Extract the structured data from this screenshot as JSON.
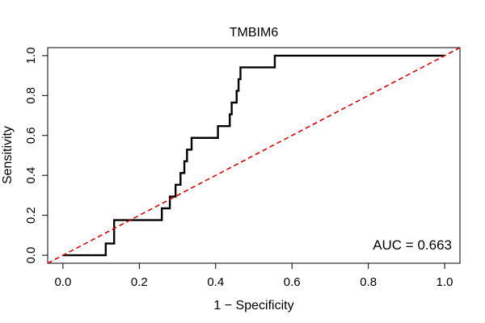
{
  "chart_data": {
    "type": "line",
    "title": "TMBIM6",
    "xlabel": "1 − Specificity",
    "ylabel": "Sensitivity",
    "xlim": [
      -0.04,
      1.04
    ],
    "ylim": [
      -0.04,
      1.04
    ],
    "xticks": [
      0.0,
      0.2,
      0.4,
      0.6,
      0.8,
      1.0
    ],
    "xtick_labels": [
      "0.0",
      "0.2",
      "0.4",
      "0.6",
      "0.8",
      "1.0"
    ],
    "yticks": [
      0.0,
      0.2,
      0.4,
      0.6,
      0.8,
      1.0
    ],
    "ytick_labels": [
      "0.0",
      "0.2",
      "0.4",
      "0.6",
      "0.8",
      "1.0"
    ],
    "grid": false,
    "annotation": "AUC = 0.663",
    "series": [
      {
        "type": "step",
        "color": "#000000",
        "points": [
          [
            0.0,
            0.0
          ],
          [
            0.112,
            0.0
          ],
          [
            0.112,
            0.059
          ],
          [
            0.134,
            0.059
          ],
          [
            0.134,
            0.176
          ],
          [
            0.259,
            0.176
          ],
          [
            0.259,
            0.235
          ],
          [
            0.28,
            0.235
          ],
          [
            0.28,
            0.294
          ],
          [
            0.295,
            0.294
          ],
          [
            0.295,
            0.353
          ],
          [
            0.308,
            0.353
          ],
          [
            0.308,
            0.412
          ],
          [
            0.318,
            0.412
          ],
          [
            0.318,
            0.471
          ],
          [
            0.325,
            0.471
          ],
          [
            0.325,
            0.529
          ],
          [
            0.337,
            0.529
          ],
          [
            0.337,
            0.588
          ],
          [
            0.406,
            0.588
          ],
          [
            0.406,
            0.647
          ],
          [
            0.437,
            0.647
          ],
          [
            0.437,
            0.706
          ],
          [
            0.442,
            0.706
          ],
          [
            0.442,
            0.765
          ],
          [
            0.455,
            0.765
          ],
          [
            0.455,
            0.824
          ],
          [
            0.46,
            0.824
          ],
          [
            0.46,
            0.882
          ],
          [
            0.465,
            0.882
          ],
          [
            0.465,
            0.941
          ],
          [
            0.555,
            0.941
          ],
          [
            0.555,
            1.0
          ],
          [
            1.0,
            1.0
          ]
        ]
      },
      {
        "type": "reference",
        "color": "#e00000",
        "dashed": true,
        "points": [
          [
            -0.04,
            -0.04
          ],
          [
            1.04,
            1.04
          ]
        ]
      }
    ]
  }
}
